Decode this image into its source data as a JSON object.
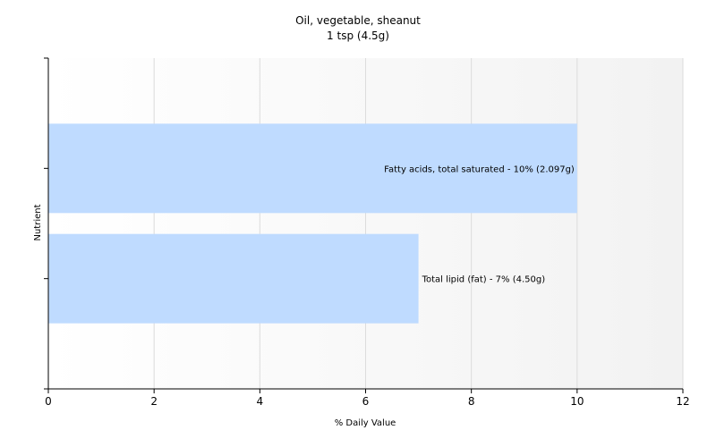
{
  "chart_data": {
    "type": "bar",
    "orientation": "horizontal",
    "title": "Oil, vegetable, sheanut",
    "subtitle": "1 tsp (4.5g)",
    "xlabel": "% Daily Value",
    "ylabel": "Nutrient",
    "xlim": [
      0,
      12
    ],
    "xticks": [
      "0",
      "2",
      "4",
      "6",
      "8",
      "10",
      "12"
    ],
    "grid": true,
    "bar_color": "#bfdbff",
    "categories": [
      "Fatty acids, total saturated",
      "Total lipid (fat)"
    ],
    "values": [
      10,
      7
    ],
    "data_labels": [
      "Fatty acids, total saturated - 10% (2.097g)",
      "Total lipid (fat) - 7% (4.50g)"
    ]
  }
}
